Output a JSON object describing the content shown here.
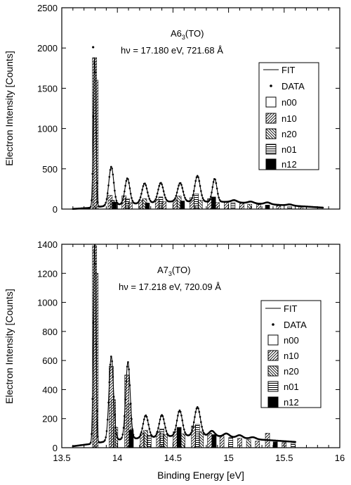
{
  "chart_data": [
    {
      "type": "line",
      "label_main": "A6",
      "label_sub": "3",
      "label_tail": "(TO)",
      "energy_label": "hν = 17.180 eV, 721.68 Å",
      "xlim": [
        13.5,
        16
      ],
      "ylim": [
        0,
        2500
      ],
      "yticks": [
        0,
        500,
        1000,
        1500,
        2000,
        2500
      ],
      "ylabel": "Electron Intensity  [Counts]",
      "legend": [
        "FIT",
        "DATA",
        "n00",
        "n10",
        "n20",
        "n01",
        "n12"
      ],
      "peaks": [
        {
          "x": 13.795,
          "h": 1860,
          "w": 0.011
        },
        {
          "x": 13.945,
          "h": 480,
          "w": 0.022
        },
        {
          "x": 14.09,
          "h": 320,
          "w": 0.022
        },
        {
          "x": 14.245,
          "h": 245,
          "w": 0.024
        },
        {
          "x": 14.39,
          "h": 240,
          "w": 0.024
        },
        {
          "x": 14.565,
          "h": 230,
          "w": 0.024
        },
        {
          "x": 14.72,
          "h": 320,
          "w": 0.024
        },
        {
          "x": 14.875,
          "h": 285,
          "w": 0.02
        }
      ],
      "baseline": [
        [
          13.6,
          2
        ],
        [
          13.75,
          15
        ],
        [
          14.0,
          55
        ],
        [
          14.5,
          95
        ],
        [
          15.0,
          90
        ],
        [
          15.3,
          65
        ],
        [
          15.6,
          40
        ],
        [
          15.85,
          18
        ]
      ],
      "ripples": [
        [
          15.05,
          25,
          0.025
        ],
        [
          15.2,
          20,
          0.025
        ],
        [
          15.35,
          22,
          0.025
        ],
        [
          15.55,
          14,
          0.025
        ]
      ],
      "data_overshoot": {
        "x": 13.782,
        "y": 2010
      },
      "bars": [
        [
          13.795,
          1880,
          1
        ],
        [
          13.808,
          1600,
          1
        ],
        [
          13.935,
          170,
          1
        ],
        [
          13.955,
          110,
          2
        ],
        [
          13.975,
          85,
          4
        ],
        [
          14.06,
          165,
          1
        ],
        [
          14.09,
          130,
          3
        ],
        [
          14.115,
          80,
          1
        ],
        [
          14.21,
          110,
          1
        ],
        [
          14.245,
          130,
          2
        ],
        [
          14.27,
          75,
          4
        ],
        [
          14.36,
          120,
          1
        ],
        [
          14.39,
          150,
          3
        ],
        [
          14.42,
          90,
          1
        ],
        [
          14.52,
          115,
          1
        ],
        [
          14.555,
          160,
          2
        ],
        [
          14.585,
          100,
          4
        ],
        [
          14.67,
          140,
          1
        ],
        [
          14.71,
          190,
          3
        ],
        [
          14.745,
          110,
          2
        ],
        [
          14.83,
          130,
          1
        ],
        [
          14.865,
          150,
          4
        ],
        [
          14.9,
          80,
          1
        ],
        [
          14.98,
          90,
          1
        ],
        [
          15.04,
          80,
          3
        ],
        [
          15.12,
          70,
          1
        ],
        [
          15.19,
          60,
          2
        ],
        [
          15.27,
          55,
          1
        ],
        [
          15.35,
          50,
          4
        ],
        [
          15.45,
          40,
          1
        ],
        [
          15.55,
          30,
          3
        ],
        [
          15.65,
          25,
          1
        ]
      ]
    },
    {
      "type": "line",
      "label_main": "A7",
      "label_sub": "3",
      "label_tail": "(TO)",
      "energy_label": "hν = 17.218 eV, 720.09 Å",
      "xlim": [
        13.5,
        16
      ],
      "ylim": [
        0,
        1400
      ],
      "yticks": [
        0,
        200,
        400,
        600,
        800,
        1000,
        1200,
        1400
      ],
      "xticks": [
        13.5,
        14,
        14.5,
        15,
        15.5,
        16
      ],
      "xticklabels": [
        "13.5",
        "14",
        "14.5",
        "15",
        "15.5",
        "16"
      ],
      "xlabel": "Binding Energy  [eV]",
      "ylabel": "Electron Intensity  [Counts]",
      "legend": [
        "FIT",
        "DATA",
        "n00",
        "n10",
        "n20",
        "n01",
        "n12"
      ],
      "peaks": [
        {
          "x": 13.795,
          "h": 1370,
          "w": 0.011
        },
        {
          "x": 13.945,
          "h": 580,
          "w": 0.02
        },
        {
          "x": 14.095,
          "h": 530,
          "w": 0.02
        },
        {
          "x": 14.255,
          "h": 155,
          "w": 0.024
        },
        {
          "x": 14.4,
          "h": 150,
          "w": 0.024
        },
        {
          "x": 14.56,
          "h": 175,
          "w": 0.024
        },
        {
          "x": 14.72,
          "h": 195,
          "w": 0.026
        }
      ],
      "baseline": [
        [
          13.6,
          10
        ],
        [
          13.75,
          25
        ],
        [
          14.0,
          55
        ],
        [
          14.5,
          80
        ],
        [
          14.75,
          85
        ],
        [
          15.0,
          75
        ],
        [
          15.3,
          55
        ],
        [
          15.6,
          40
        ]
      ],
      "ripples": [
        [
          14.85,
          35,
          0.025
        ],
        [
          14.98,
          22,
          0.025
        ],
        [
          15.1,
          18,
          0.025
        ],
        [
          15.22,
          12,
          0.025
        ]
      ],
      "bars": [
        [
          13.795,
          1390,
          1
        ],
        [
          13.808,
          1200,
          1
        ],
        [
          13.945,
          560,
          1
        ],
        [
          13.965,
          330,
          1
        ],
        [
          13.985,
          140,
          2
        ],
        [
          14.085,
          500,
          1
        ],
        [
          14.105,
          300,
          1
        ],
        [
          14.125,
          120,
          4
        ],
        [
          14.225,
          100,
          1
        ],
        [
          14.255,
          120,
          2
        ],
        [
          14.285,
          85,
          3
        ],
        [
          14.37,
          110,
          1
        ],
        [
          14.4,
          130,
          3
        ],
        [
          14.43,
          90,
          2
        ],
        [
          14.52,
          110,
          1
        ],
        [
          14.555,
          140,
          4
        ],
        [
          14.59,
          95,
          2
        ],
        [
          14.685,
          150,
          1
        ],
        [
          14.72,
          160,
          3
        ],
        [
          14.755,
          110,
          2
        ],
        [
          14.83,
          100,
          1
        ],
        [
          14.87,
          90,
          4
        ],
        [
          14.94,
          80,
          1
        ],
        [
          15.02,
          70,
          3
        ],
        [
          15.1,
          65,
          1
        ],
        [
          15.18,
          55,
          2
        ],
        [
          15.26,
          45,
          1
        ],
        [
          15.35,
          100,
          1
        ],
        [
          15.42,
          40,
          4
        ],
        [
          15.5,
          35,
          1
        ],
        [
          15.58,
          30,
          3
        ]
      ]
    }
  ]
}
